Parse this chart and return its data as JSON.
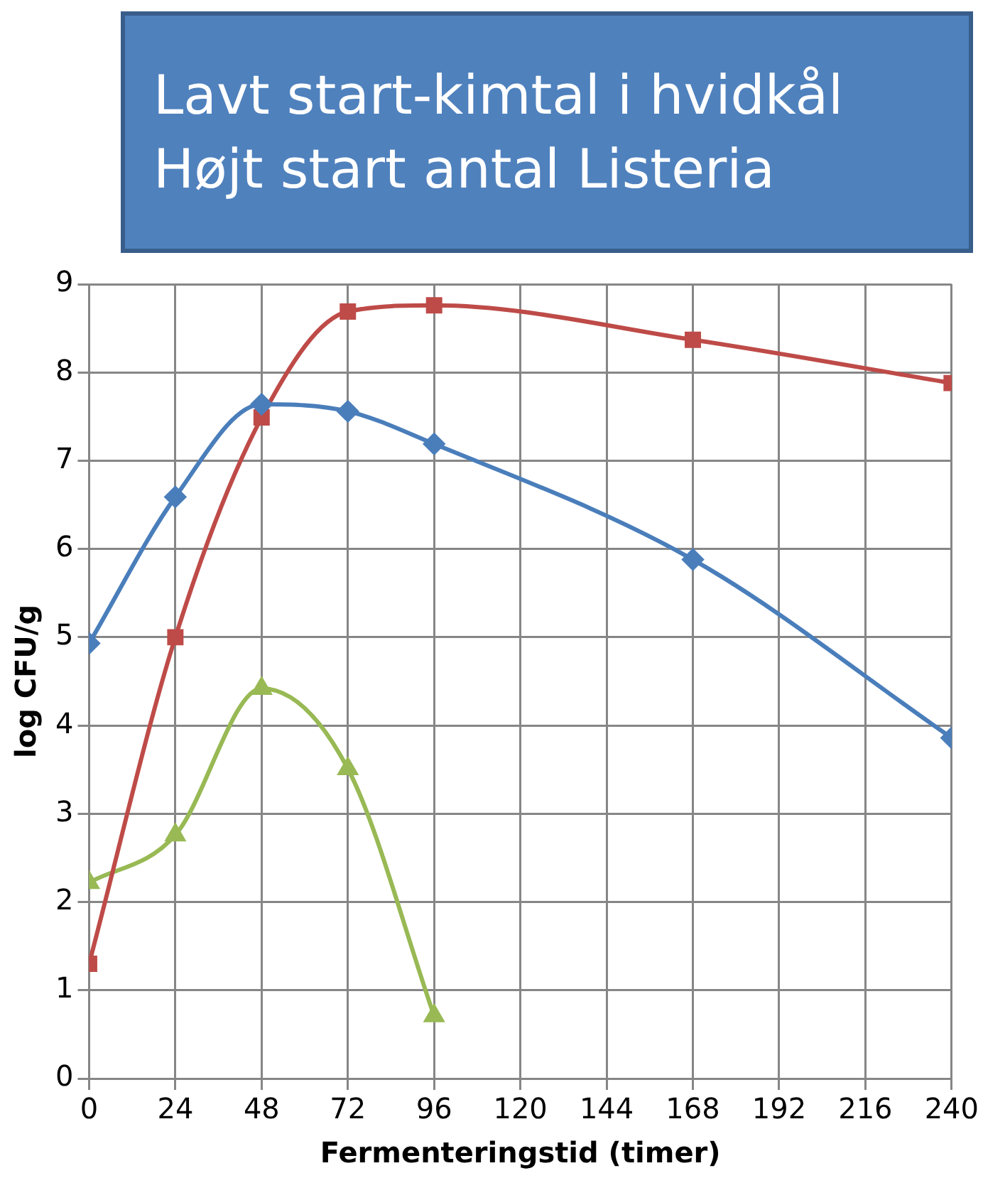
{
  "chart_data": {
    "type": "line",
    "title": "Lavt start-kimtal i hvidkål\nHøjt start antal Listeria",
    "xlabel": "Fermenteringstid (timer)",
    "ylabel": "log CFU/g",
    "x": [
      0,
      24,
      48,
      72,
      96,
      168,
      240
    ],
    "series": [
      {
        "color": "#4a7ebb",
        "marker": "diamond",
        "values": [
          4.93,
          6.59,
          7.64,
          7.56,
          7.19,
          5.88,
          3.86
        ]
      },
      {
        "color": "#be4b48",
        "marker": "square",
        "values": [
          1.3,
          5.0,
          7.49,
          8.69,
          8.76,
          8.37,
          7.88
        ]
      },
      {
        "color": "#98b954",
        "marker": "triangle",
        "values": [
          2.22,
          2.76,
          4.42,
          3.51,
          0.71,
          null,
          null
        ]
      }
    ],
    "xlim": [
      0,
      240
    ],
    "xticks": [
      0,
      24,
      48,
      72,
      96,
      120,
      144,
      168,
      192,
      216,
      240
    ],
    "ylim": [
      0,
      9
    ],
    "yticks": [
      0,
      1,
      2,
      3,
      4,
      5,
      6,
      7,
      8,
      9
    ],
    "grid": true,
    "legend": false
  }
}
